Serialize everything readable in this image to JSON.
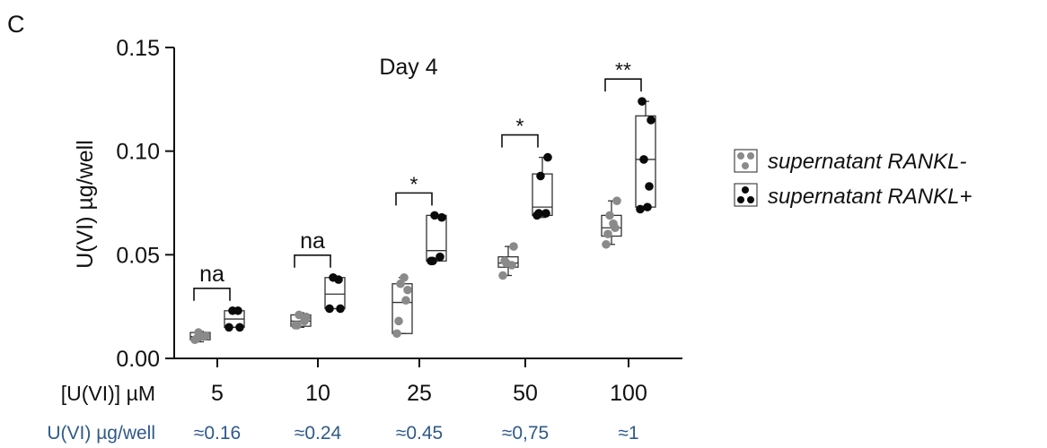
{
  "panel_label": "C",
  "chart_data": {
    "type": "box",
    "title": "Day 4",
    "ylabel": "U(VI) µg/well",
    "ylim": [
      0,
      0.15
    ],
    "yticks": [
      "0.00",
      "0.05",
      "0.10",
      "0.15"
    ],
    "yticks_values": [
      0,
      0.05,
      0.1,
      0.15
    ],
    "grid": false,
    "legend_position": "right",
    "x_row_label": "[U(VI)] µM",
    "categories": [
      "5",
      "10",
      "25",
      "50",
      "100"
    ],
    "second_row_label": "U(VI) µg/well",
    "second_row_values": [
      "≈0.16",
      "≈0.24",
      "≈0.45",
      "≈0,75",
      "≈1"
    ],
    "significance": [
      "na",
      "na",
      "*",
      "*",
      "**"
    ],
    "series": [
      {
        "name": "supernatant RANKL-",
        "color": "#8a8a8a",
        "boxes": [
          {
            "min": 0.008,
            "q1": 0.009,
            "median": 0.0105,
            "q3": 0.0125,
            "max": 0.013
          },
          {
            "min": 0.015,
            "q1": 0.0155,
            "median": 0.018,
            "q3": 0.021,
            "max": 0.022
          },
          {
            "min": 0.012,
            "q1": 0.012,
            "median": 0.027,
            "q3": 0.036,
            "max": 0.039
          },
          {
            "min": 0.04,
            "q1": 0.044,
            "median": 0.046,
            "q3": 0.049,
            "max": 0.054
          },
          {
            "min": 0.055,
            "q1": 0.059,
            "median": 0.063,
            "q3": 0.069,
            "max": 0.076
          }
        ],
        "points": [
          [
            0.009,
            0.0105,
            0.0125,
            0.011,
            0.0095
          ],
          [
            0.016,
            0.018,
            0.021,
            0.02,
            0.016
          ],
          [
            0.012,
            0.028,
            0.036,
            0.033,
            0.018,
            0.039
          ],
          [
            0.04,
            0.045,
            0.046,
            0.054,
            0.047
          ],
          [
            0.055,
            0.063,
            0.069,
            0.076,
            0.06,
            0.065
          ]
        ]
      },
      {
        "name": "supernatant RANKL+",
        "color": "#0a0a0a",
        "boxes": [
          {
            "min": 0.015,
            "q1": 0.015,
            "median": 0.019,
            "q3": 0.023,
            "max": 0.023
          },
          {
            "min": 0.024,
            "q1": 0.024,
            "median": 0.031,
            "q3": 0.039,
            "max": 0.039
          },
          {
            "min": 0.047,
            "q1": 0.047,
            "median": 0.052,
            "q3": 0.069,
            "max": 0.069
          },
          {
            "min": 0.068,
            "q1": 0.069,
            "median": 0.073,
            "q3": 0.089,
            "max": 0.097
          },
          {
            "min": 0.072,
            "q1": 0.073,
            "median": 0.096,
            "q3": 0.117,
            "max": 0.124
          }
        ],
        "points": [
          [
            0.015,
            0.023,
            0.023,
            0.015
          ],
          [
            0.024,
            0.038,
            0.039,
            0.024
          ],
          [
            0.047,
            0.049,
            0.069,
            0.068,
            0.047
          ],
          [
            0.069,
            0.07,
            0.088,
            0.097,
            0.07
          ],
          [
            0.072,
            0.083,
            0.096,
            0.115,
            0.124,
            0.073
          ]
        ]
      }
    ]
  }
}
